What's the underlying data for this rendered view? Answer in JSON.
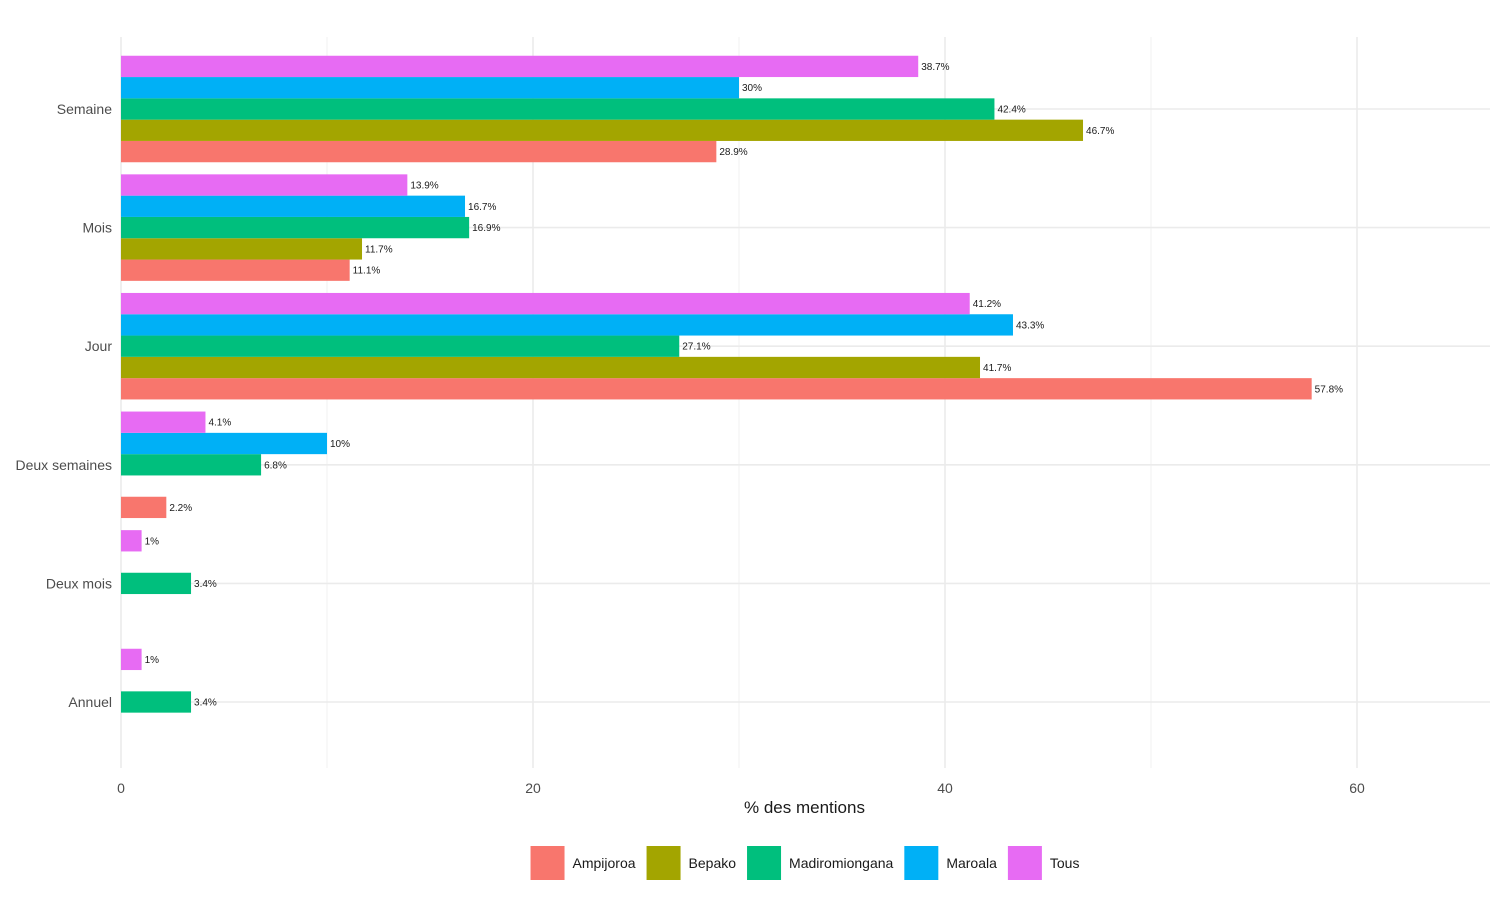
{
  "chart_data": {
    "type": "bar",
    "orientation": "horizontal",
    "title": "",
    "xlabel": "% des mentions",
    "ylabel": "",
    "xlim": [
      0,
      66.5
    ],
    "xticks": [
      0,
      20,
      40,
      60
    ],
    "grid": true,
    "legend_position": "bottom",
    "categories": [
      "Semaine",
      "Mois",
      "Jour",
      "Deux semaines",
      "Deux mois",
      "Annuel"
    ],
    "series": [
      {
        "name": "Ampijoroa",
        "color": "#F8766D",
        "values": [
          28.9,
          11.1,
          57.8,
          2.2,
          null,
          null
        ],
        "labels": [
          "28.9%",
          "11.1%",
          "57.8%",
          "2.2%",
          "",
          ""
        ]
      },
      {
        "name": "Bepako",
        "color": "#A3A500",
        "values": [
          46.7,
          11.7,
          41.7,
          null,
          null,
          null
        ],
        "labels": [
          "46.7%",
          "11.7%",
          "41.7%",
          "",
          "",
          ""
        ]
      },
      {
        "name": "Madiromiongana",
        "color": "#00BF7D",
        "values": [
          42.4,
          16.9,
          27.1,
          6.8,
          3.4,
          3.4
        ],
        "labels": [
          "42.4%",
          "16.9%",
          "27.1%",
          "6.8%",
          "3.4%",
          "3.4%"
        ]
      },
      {
        "name": "Maroala",
        "color": "#00B0F6",
        "values": [
          30,
          16.7,
          43.3,
          10,
          null,
          null
        ],
        "labels": [
          "30%",
          "16.7%",
          "43.3%",
          "10%",
          "",
          ""
        ]
      },
      {
        "name": "Tous",
        "color": "#E76BF3",
        "values": [
          38.7,
          13.9,
          41.2,
          4.1,
          1,
          1
        ],
        "labels": [
          "38.7%",
          "13.9%",
          "41.2%",
          "4.1%",
          "1%",
          "1%"
        ]
      }
    ]
  }
}
